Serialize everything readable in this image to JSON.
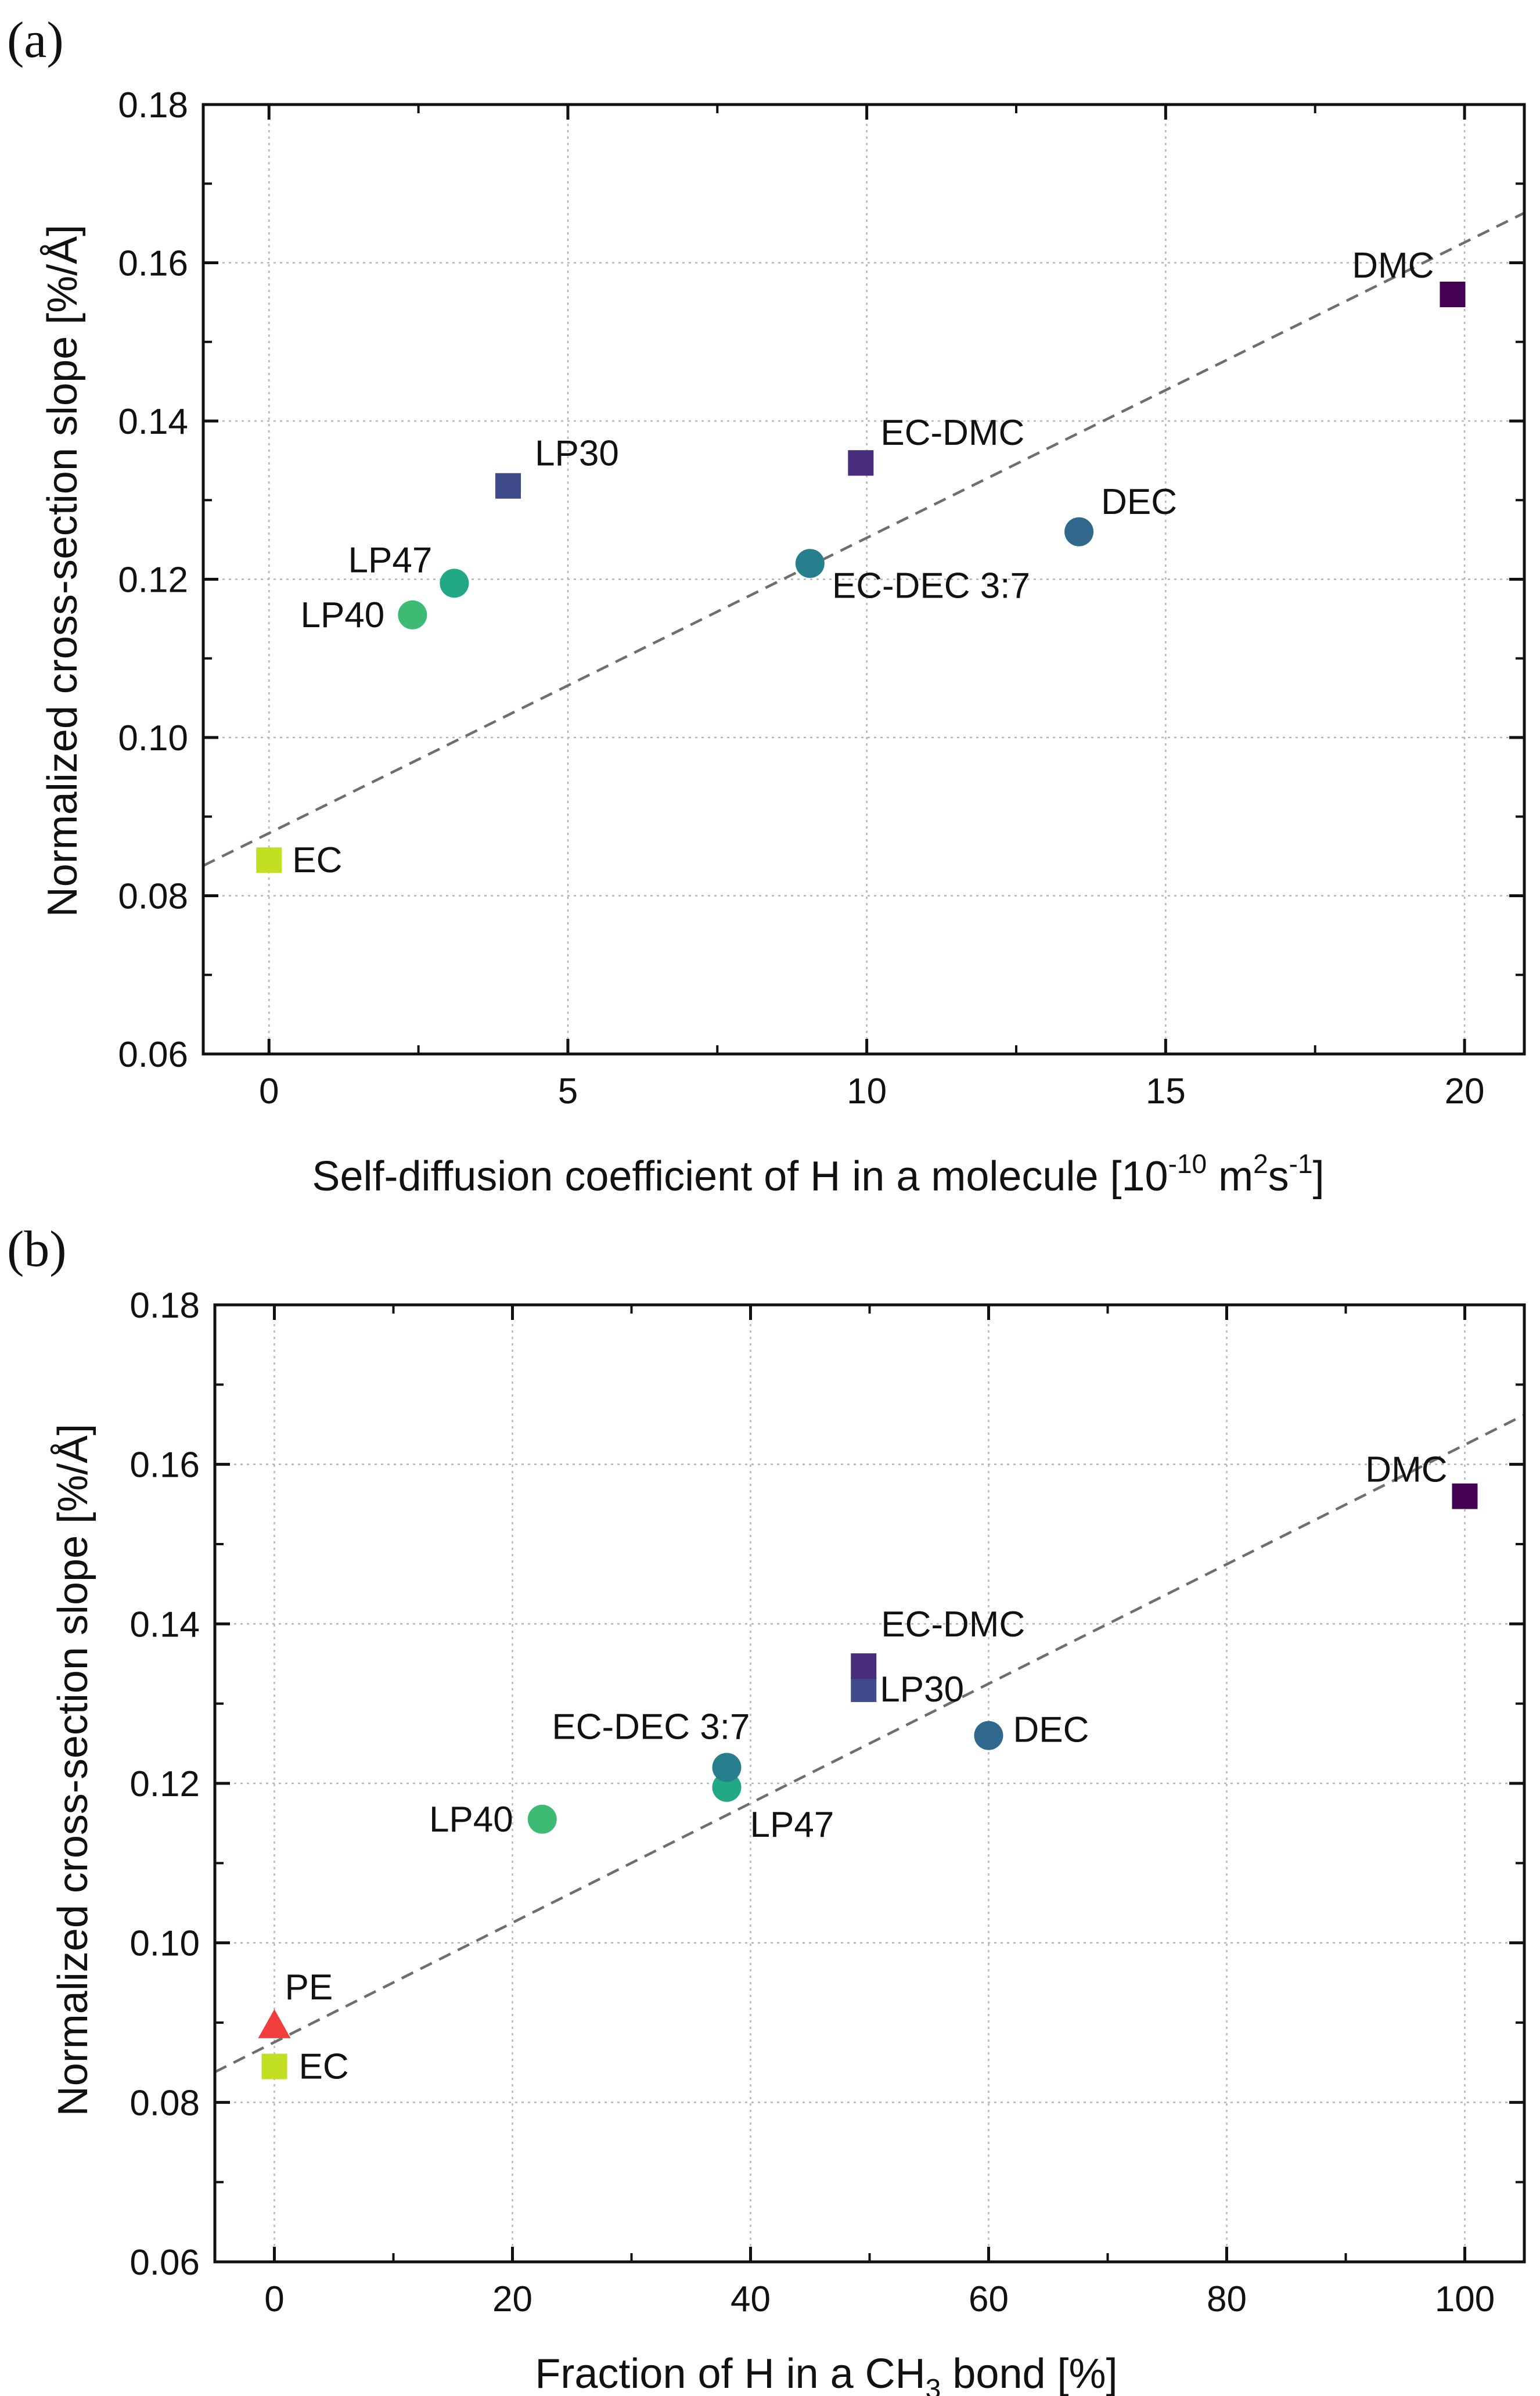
{
  "chart_data": [
    {
      "type": "scatter",
      "panel_label": "(a)",
      "xlabel": "Self-diffusion coefficient of H in a molecule [10",
      "xlabel_sup1": "-10",
      "xlabel_mid": " m",
      "xlabel_sup2": "2",
      "xlabel_mid2": "s",
      "xlabel_sup3": "-1",
      "xlabel_end": "]",
      "ylabel": "Normalized cross-section slope [%/Å]",
      "xlim": [
        -1.1,
        21.0
      ],
      "ylim": [
        0.06,
        0.18
      ],
      "xticks": [
        0,
        5,
        10,
        15,
        20
      ],
      "xtick_labels": [
        "0",
        "5",
        "10",
        "15",
        "20"
      ],
      "yticks": [
        0.06,
        0.08,
        0.1,
        0.12,
        0.14,
        0.16,
        0.18
      ],
      "ytick_labels": [
        "0.06",
        "0.08",
        "0.10",
        "0.12",
        "0.14",
        "0.16",
        "0.18"
      ],
      "grid": true,
      "fit_line": {
        "x": [
          -1.1,
          21.0
        ],
        "y": [
          0.0838,
          0.1663
        ]
      },
      "points": [
        {
          "name": "EC",
          "x": 0.0,
          "y": 0.0845,
          "marker": "square",
          "color": "#c2df23",
          "label_side": "right"
        },
        {
          "name": "LP40",
          "x": 2.4,
          "y": 0.1155,
          "marker": "circle",
          "color": "#3dbb74",
          "label_side": "left"
        },
        {
          "name": "LP47",
          "x": 3.1,
          "y": 0.1195,
          "marker": "circle",
          "color": "#22a884",
          "label_side": "upper-left"
        },
        {
          "name": "LP30",
          "x": 4.0,
          "y": 0.1318,
          "marker": "square",
          "color": "#3e4a89",
          "label_side": "upper-right"
        },
        {
          "name": "EC-DEC 3:7",
          "x": 9.05,
          "y": 0.122,
          "marker": "circle",
          "color": "#277f8e",
          "label_side": "lower-right"
        },
        {
          "name": "EC-DMC",
          "x": 9.9,
          "y": 0.1347,
          "marker": "square",
          "color": "#472d7b",
          "label_side": "upper-right"
        },
        {
          "name": "DEC",
          "x": 13.55,
          "y": 0.126,
          "marker": "circle",
          "color": "#31688e",
          "label_side": "upper-right"
        },
        {
          "name": "DMC",
          "x": 19.8,
          "y": 0.156,
          "marker": "square",
          "color": "#440154",
          "label_side": "upper-left"
        }
      ]
    },
    {
      "type": "scatter",
      "panel_label": "(b)",
      "xlabel": "Fraction of H in a CH",
      "xlabel_sub": "3",
      "xlabel_end": " bond [%]",
      "ylabel": "Normalized cross-section slope [%/Å]",
      "xlim": [
        -5,
        105
      ],
      "ylim": [
        0.06,
        0.18
      ],
      "xticks": [
        0,
        20,
        40,
        60,
        80,
        100
      ],
      "xtick_labels": [
        "0",
        "20",
        "40",
        "60",
        "80",
        "100"
      ],
      "yticks": [
        0.06,
        0.08,
        0.1,
        0.12,
        0.14,
        0.16,
        0.18
      ],
      "ytick_labels": [
        "0.06",
        "0.08",
        "0.10",
        "0.12",
        "0.14",
        "0.16",
        "0.18"
      ],
      "grid": true,
      "fit_line": {
        "x": [
          -5,
          105
        ],
        "y": [
          0.0838,
          0.1662
        ]
      },
      "points": [
        {
          "name": "PE",
          "x": 0.0,
          "y": 0.0895,
          "marker": "triangle",
          "color": "#f23d3d",
          "label_side": "upper-right"
        },
        {
          "name": "EC",
          "x": 0.0,
          "y": 0.0845,
          "marker": "square",
          "color": "#c2df23",
          "label_side": "right"
        },
        {
          "name": "LP40",
          "x": 22.5,
          "y": 0.1155,
          "marker": "circle",
          "color": "#3dbb74",
          "label_side": "left"
        },
        {
          "name": "LP47",
          "x": 38.0,
          "y": 0.1195,
          "marker": "circle",
          "color": "#22a884",
          "label_side": "lower-right"
        },
        {
          "name": "EC-DEC 3:7",
          "x": 38.0,
          "y": 0.122,
          "marker": "circle",
          "color": "#277f8e",
          "label_side": "upper-left"
        },
        {
          "name": "LP30",
          "x": 49.5,
          "y": 0.1318,
          "marker": "square",
          "color": "#3e4a89",
          "label_side": "right"
        },
        {
          "name": "EC-DMC",
          "x": 49.5,
          "y": 0.1347,
          "marker": "square",
          "color": "#472d7b",
          "label_side": "upper-right"
        },
        {
          "name": "DEC",
          "x": 60.0,
          "y": 0.126,
          "marker": "circle",
          "color": "#31688e",
          "label_side": "right"
        },
        {
          "name": "DMC",
          "x": 100.0,
          "y": 0.156,
          "marker": "square",
          "color": "#440154",
          "label_side": "upper-left"
        }
      ]
    }
  ]
}
